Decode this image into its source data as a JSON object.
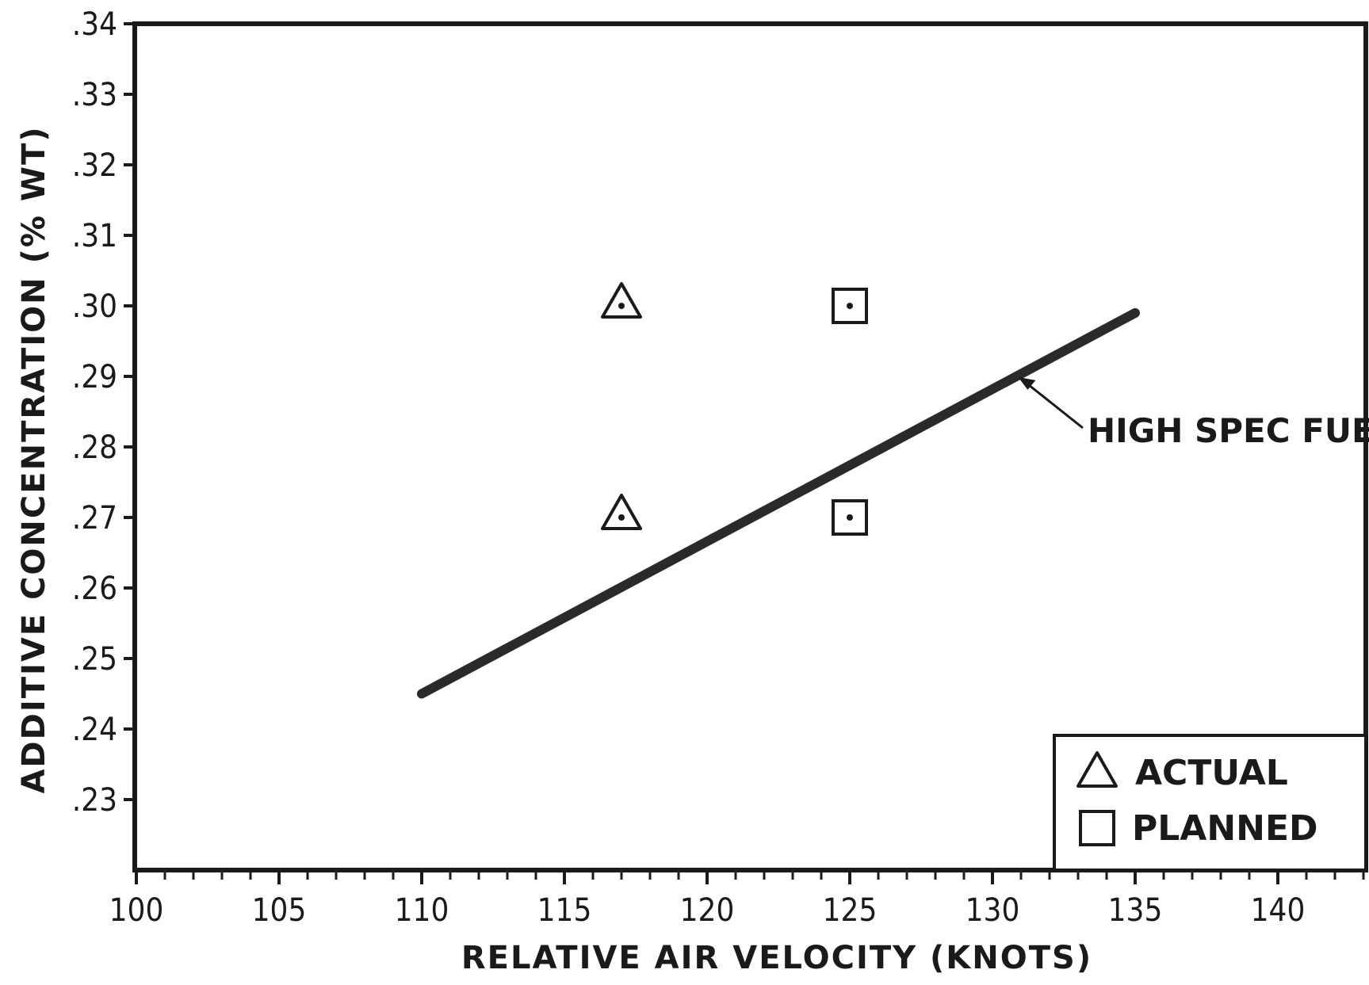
{
  "chart_data": {
    "type": "scatter",
    "xlabel": "RELATIVE AIR VELOCITY (KNOTS)",
    "ylabel": "ADDITIVE CONCENTRATION (% WT)",
    "xlim": [
      100,
      143
    ],
    "ylim": [
      0.221,
      0.34
    ],
    "x_ticks": [
      100,
      105,
      110,
      115,
      120,
      125,
      130,
      135,
      140
    ],
    "x_tick_labels": [
      "100",
      "105",
      "110",
      "115",
      "120",
      "125",
      "130",
      "135",
      "140"
    ],
    "x_minor_step": 1,
    "y_ticks": [
      0.23,
      0.24,
      0.25,
      0.26,
      0.27,
      0.28,
      0.29,
      0.3,
      0.31,
      0.32,
      0.33,
      0.34
    ],
    "y_tick_labels": [
      ".23",
      ".24",
      ".25",
      ".26",
      ".27",
      ".28",
      ".29",
      ".30",
      ".31",
      ".32",
      ".33",
      ".34"
    ],
    "grid": false,
    "legend_position": "bottom-right",
    "series": [
      {
        "name": "ACTUAL",
        "marker": "triangle",
        "points": [
          {
            "x": 117,
            "y": 0.3
          },
          {
            "x": 117,
            "y": 0.27
          }
        ]
      },
      {
        "name": "PLANNED",
        "marker": "square",
        "points": [
          {
            "x": 125,
            "y": 0.3
          },
          {
            "x": 125,
            "y": 0.27
          }
        ]
      }
    ],
    "line": {
      "label": "HIGH SPEC FUEL",
      "points": [
        {
          "x": 110,
          "y": 0.245
        },
        {
          "x": 135,
          "y": 0.299
        }
      ]
    },
    "annotations": [
      {
        "text": "HIGH SPEC FUEL",
        "points_to": {
          "x": 130.9,
          "y": 0.2899
        }
      }
    ]
  }
}
